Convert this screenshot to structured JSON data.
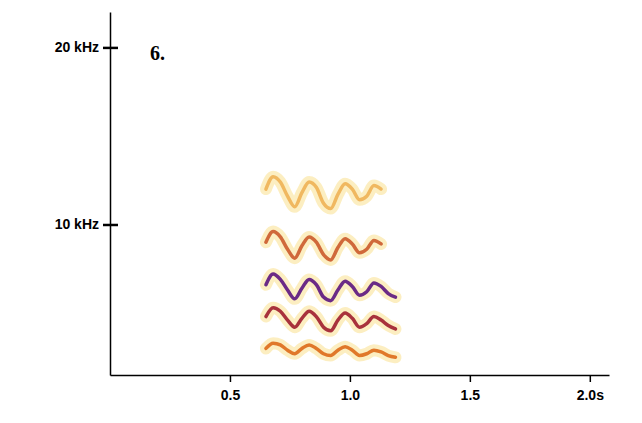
{
  "chart_data": {
    "type": "line",
    "title": "6.",
    "x": [
      0.65,
      0.68,
      0.71,
      0.74,
      0.77,
      0.8,
      0.83,
      0.86,
      0.89,
      0.92,
      0.95,
      0.98,
      1.01,
      1.04,
      1.07,
      1.1,
      1.13,
      1.16,
      1.19
    ],
    "series": [
      {
        "color": "#e0782a",
        "values": [
          3.0,
          3.3,
          3.2,
          2.9,
          2.7,
          3.0,
          3.2,
          3.0,
          2.7,
          2.6,
          2.9,
          3.1,
          2.9,
          2.6,
          2.7,
          2.9,
          2.8,
          2.6,
          2.5
        ]
      },
      {
        "color": "#a8323c",
        "values": [
          4.8,
          5.3,
          5.1,
          4.6,
          4.2,
          4.7,
          5.1,
          4.8,
          4.2,
          4.0,
          4.6,
          5.0,
          4.7,
          4.2,
          4.4,
          4.8,
          4.6,
          4.3,
          4.1
        ]
      },
      {
        "color": "#6b2a86",
        "values": [
          6.6,
          7.2,
          6.9,
          6.3,
          5.8,
          6.4,
          6.9,
          6.6,
          5.9,
          5.7,
          6.3,
          6.8,
          6.5,
          6.0,
          6.2,
          6.7,
          6.5,
          6.1,
          5.9
        ]
      },
      {
        "color": "#d0693a",
        "values": [
          9.0,
          9.6,
          9.3,
          8.6,
          8.1,
          8.8,
          9.3,
          9.0,
          8.3,
          8.0,
          8.7,
          9.2,
          8.9,
          8.4,
          8.6,
          9.1,
          8.9,
          null,
          null
        ]
      },
      {
        "color": "#f0b860",
        "values": [
          12.0,
          12.7,
          12.4,
          11.6,
          11.0,
          11.8,
          12.4,
          12.1,
          11.2,
          10.9,
          11.7,
          12.3,
          12.0,
          11.4,
          11.6,
          12.2,
          12.0,
          null,
          null
        ]
      }
    ],
    "xlim": [
      0,
      2.08
    ],
    "ylim": [
      1.5,
      22
    ],
    "xticks": [
      0.5,
      {
        "value": 1.0,
        "label": "1.0"
      },
      {
        "value": 1.5,
        "label": "1.5"
      },
      {
        "value": 2.0,
        "label": "2.0s"
      }
    ],
    "yticks": [
      {
        "value": 10,
        "label": "10 kHz"
      },
      {
        "value": 20,
        "label": "20 kHz"
      }
    ],
    "grid": false
  }
}
